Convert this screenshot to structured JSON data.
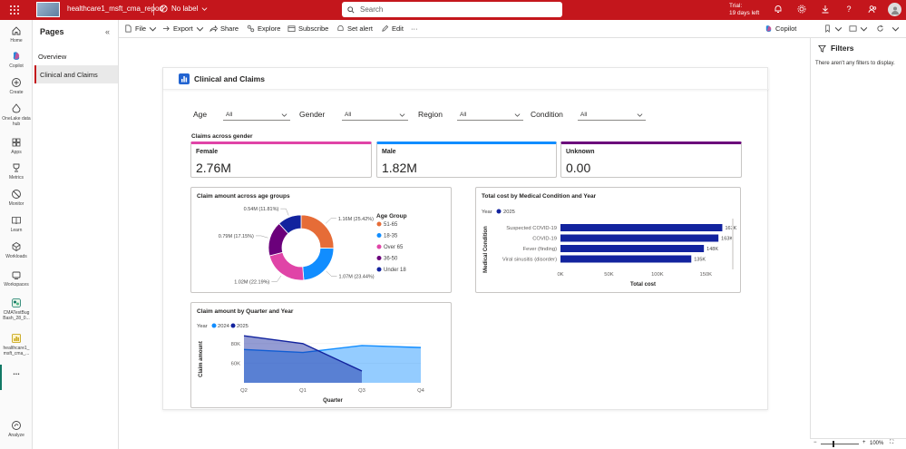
{
  "topbar": {
    "report_title": "healthcare1_msft_cma_report",
    "sensitivity_label": "No label",
    "search_placeholder": "Search",
    "trial_line1": "Trial:",
    "trial_line2": "19 days left",
    "brand_color": "#c4161c"
  },
  "leftnav": {
    "items": [
      {
        "label": "Home",
        "icon": "home-icon"
      },
      {
        "label": "Copilot",
        "icon": "copilot-icon"
      },
      {
        "label": "Create",
        "icon": "create-icon"
      },
      {
        "label": "OneLake data hub",
        "icon": "onelake-icon"
      },
      {
        "label": "Apps",
        "icon": "apps-icon"
      },
      {
        "label": "Metrics",
        "icon": "metrics-icon"
      },
      {
        "label": "Monitor",
        "icon": "monitor-icon"
      },
      {
        "label": "Learn",
        "icon": "learn-icon"
      },
      {
        "label": "Workloads",
        "icon": "workloads-icon"
      },
      {
        "label": "Workspaces",
        "icon": "workspaces-icon"
      },
      {
        "label": "CMATestBug Bash_28_0...",
        "icon": "workspace-icon"
      },
      {
        "label": "healthcare1_ msft_cma_...",
        "icon": "report-icon"
      },
      {
        "label": "...",
        "icon": "more-icon"
      },
      {
        "label": "Analyze",
        "icon": "analyze-icon"
      }
    ]
  },
  "pages_pane": {
    "title": "Pages",
    "items": [
      "Overview",
      "Clinical and Claims"
    ],
    "active_index": 1
  },
  "toolbar": {
    "file": "File",
    "export": "Export",
    "share": "Share",
    "explore": "Explore",
    "subscribe": "Subscribe",
    "set_alert": "Set alert",
    "edit": "Edit",
    "more": "···",
    "copilot": "Copilot"
  },
  "filters_pane": {
    "title": "Filters",
    "empty_message": "There aren't any filters to display."
  },
  "statusbar": {
    "zoom": "100%"
  },
  "report": {
    "title": "Clinical and Claims",
    "slicers": [
      {
        "label": "Age",
        "value": "All"
      },
      {
        "label": "Gender",
        "value": "All"
      },
      {
        "label": "Region",
        "value": "All"
      },
      {
        "label": "Condition",
        "value": "All"
      }
    ],
    "claims_gender_label": "Claims across gender",
    "kpis": [
      {
        "name": "Female",
        "value": "2.76M",
        "color": "#e044a7"
      },
      {
        "name": "Male",
        "value": "1.82M",
        "color": "#118dff"
      },
      {
        "name": "Unknown",
        "value": "0.00",
        "color": "#6b007b"
      }
    ]
  },
  "chart_data": [
    {
      "type": "pie",
      "title": "Claim amount across age groups",
      "legend_title": "Age Group",
      "legend_position": "right",
      "slices": [
        {
          "label": "51-65",
          "value": 1.16,
          "pct": "25.42%",
          "display": "1.16M (25.42%)",
          "color": "#e66c37"
        },
        {
          "label": "18-35",
          "value": 1.07,
          "pct": "23.44%",
          "display": "1.07M (23.44%)",
          "color": "#118dff"
        },
        {
          "label": "Over 65",
          "value": 1.02,
          "pct": "22.19%",
          "display": "1.02M (22.19%)",
          "color": "#e044a7"
        },
        {
          "label": "36-50",
          "value": 0.79,
          "pct": "17.15%",
          "display": "0.79M (17.15%)",
          "color": "#6b007b"
        },
        {
          "label": "Under 18",
          "value": 0.54,
          "pct": "11.81%",
          "display": "0.54M (11.81%)",
          "color": "#12239e"
        }
      ]
    },
    {
      "type": "bar",
      "orientation": "horizontal",
      "title": "Total cost by Medical Condition and Year",
      "legend_title": "Year",
      "legend": [
        "2025"
      ],
      "series_color": "#12239e",
      "categories": [
        "Suspected COVID-19",
        "COVID-19",
        "Fever (finding)",
        "Viral sinusitis (disorder)"
      ],
      "values": [
        167000,
        163000,
        148000,
        135000
      ],
      "value_labels": [
        "167K",
        "163K",
        "148K",
        "135K"
      ],
      "xlabel": "Total cost",
      "ylabel": "Medical Condition",
      "xlim": [
        0,
        175000
      ],
      "xticks": [
        "0K",
        "50K",
        "100K",
        "150K"
      ]
    },
    {
      "type": "area",
      "title": "Claim amount by Quarter and Year",
      "legend_title": "Year",
      "categories": [
        "Q2",
        "Q1",
        "Q3",
        "Q4"
      ],
      "xlabel": "Quarter",
      "ylabel": "Claim amount",
      "yticks": [
        "80K",
        "60K"
      ],
      "ylim": [
        40000,
        90000
      ],
      "series": [
        {
          "name": "2024",
          "color": "#118dff",
          "values": [
            74000,
            71000,
            78000,
            76000
          ]
        },
        {
          "name": "2025",
          "color": "#12239e",
          "values": [
            88000,
            80000,
            52000,
            null
          ]
        }
      ]
    }
  ]
}
